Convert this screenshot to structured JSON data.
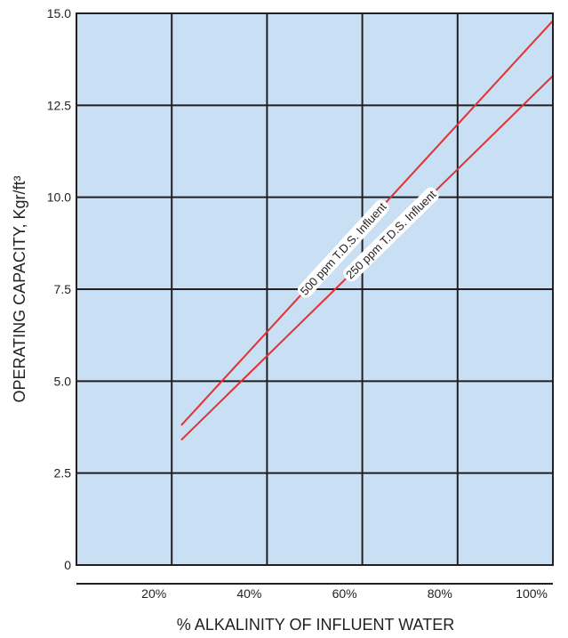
{
  "chart_data": {
    "type": "line",
    "title": "",
    "xlabel": "% ALKALINITY OF INFLUENT WATER",
    "ylabel": "OPERATING CAPACITY, Kgr/ft³",
    "xlim": [
      0,
      100
    ],
    "ylim": [
      0,
      15
    ],
    "x_ticks": [
      {
        "value": 20,
        "label": "20%"
      },
      {
        "value": 40,
        "label": "40%"
      },
      {
        "value": 60,
        "label": "60%"
      },
      {
        "value": 80,
        "label": "80%"
      },
      {
        "value": 100,
        "label": "100%"
      }
    ],
    "y_ticks": [
      {
        "value": 0,
        "label": "0"
      },
      {
        "value": 2.5,
        "label": "2.5"
      },
      {
        "value": 5,
        "label": "5.0"
      },
      {
        "value": 7.5,
        "label": "7.5"
      },
      {
        "value": 10,
        "label": "10.0"
      },
      {
        "value": 12.5,
        "label": "12.5"
      },
      {
        "value": 15,
        "label": "15.0"
      }
    ],
    "grid": true,
    "plot_background": "#c9dff3",
    "line_color": "#e03232",
    "series": [
      {
        "name": "500 ppm T.D.S. Influent",
        "x": [
          22,
          100
        ],
        "y": [
          3.8,
          14.8
        ],
        "label_at": 56
      },
      {
        "name": "250 ppm T.D.S. Influent",
        "x": [
          22,
          100
        ],
        "y": [
          3.4,
          13.3
        ],
        "label_at": 66
      }
    ]
  }
}
